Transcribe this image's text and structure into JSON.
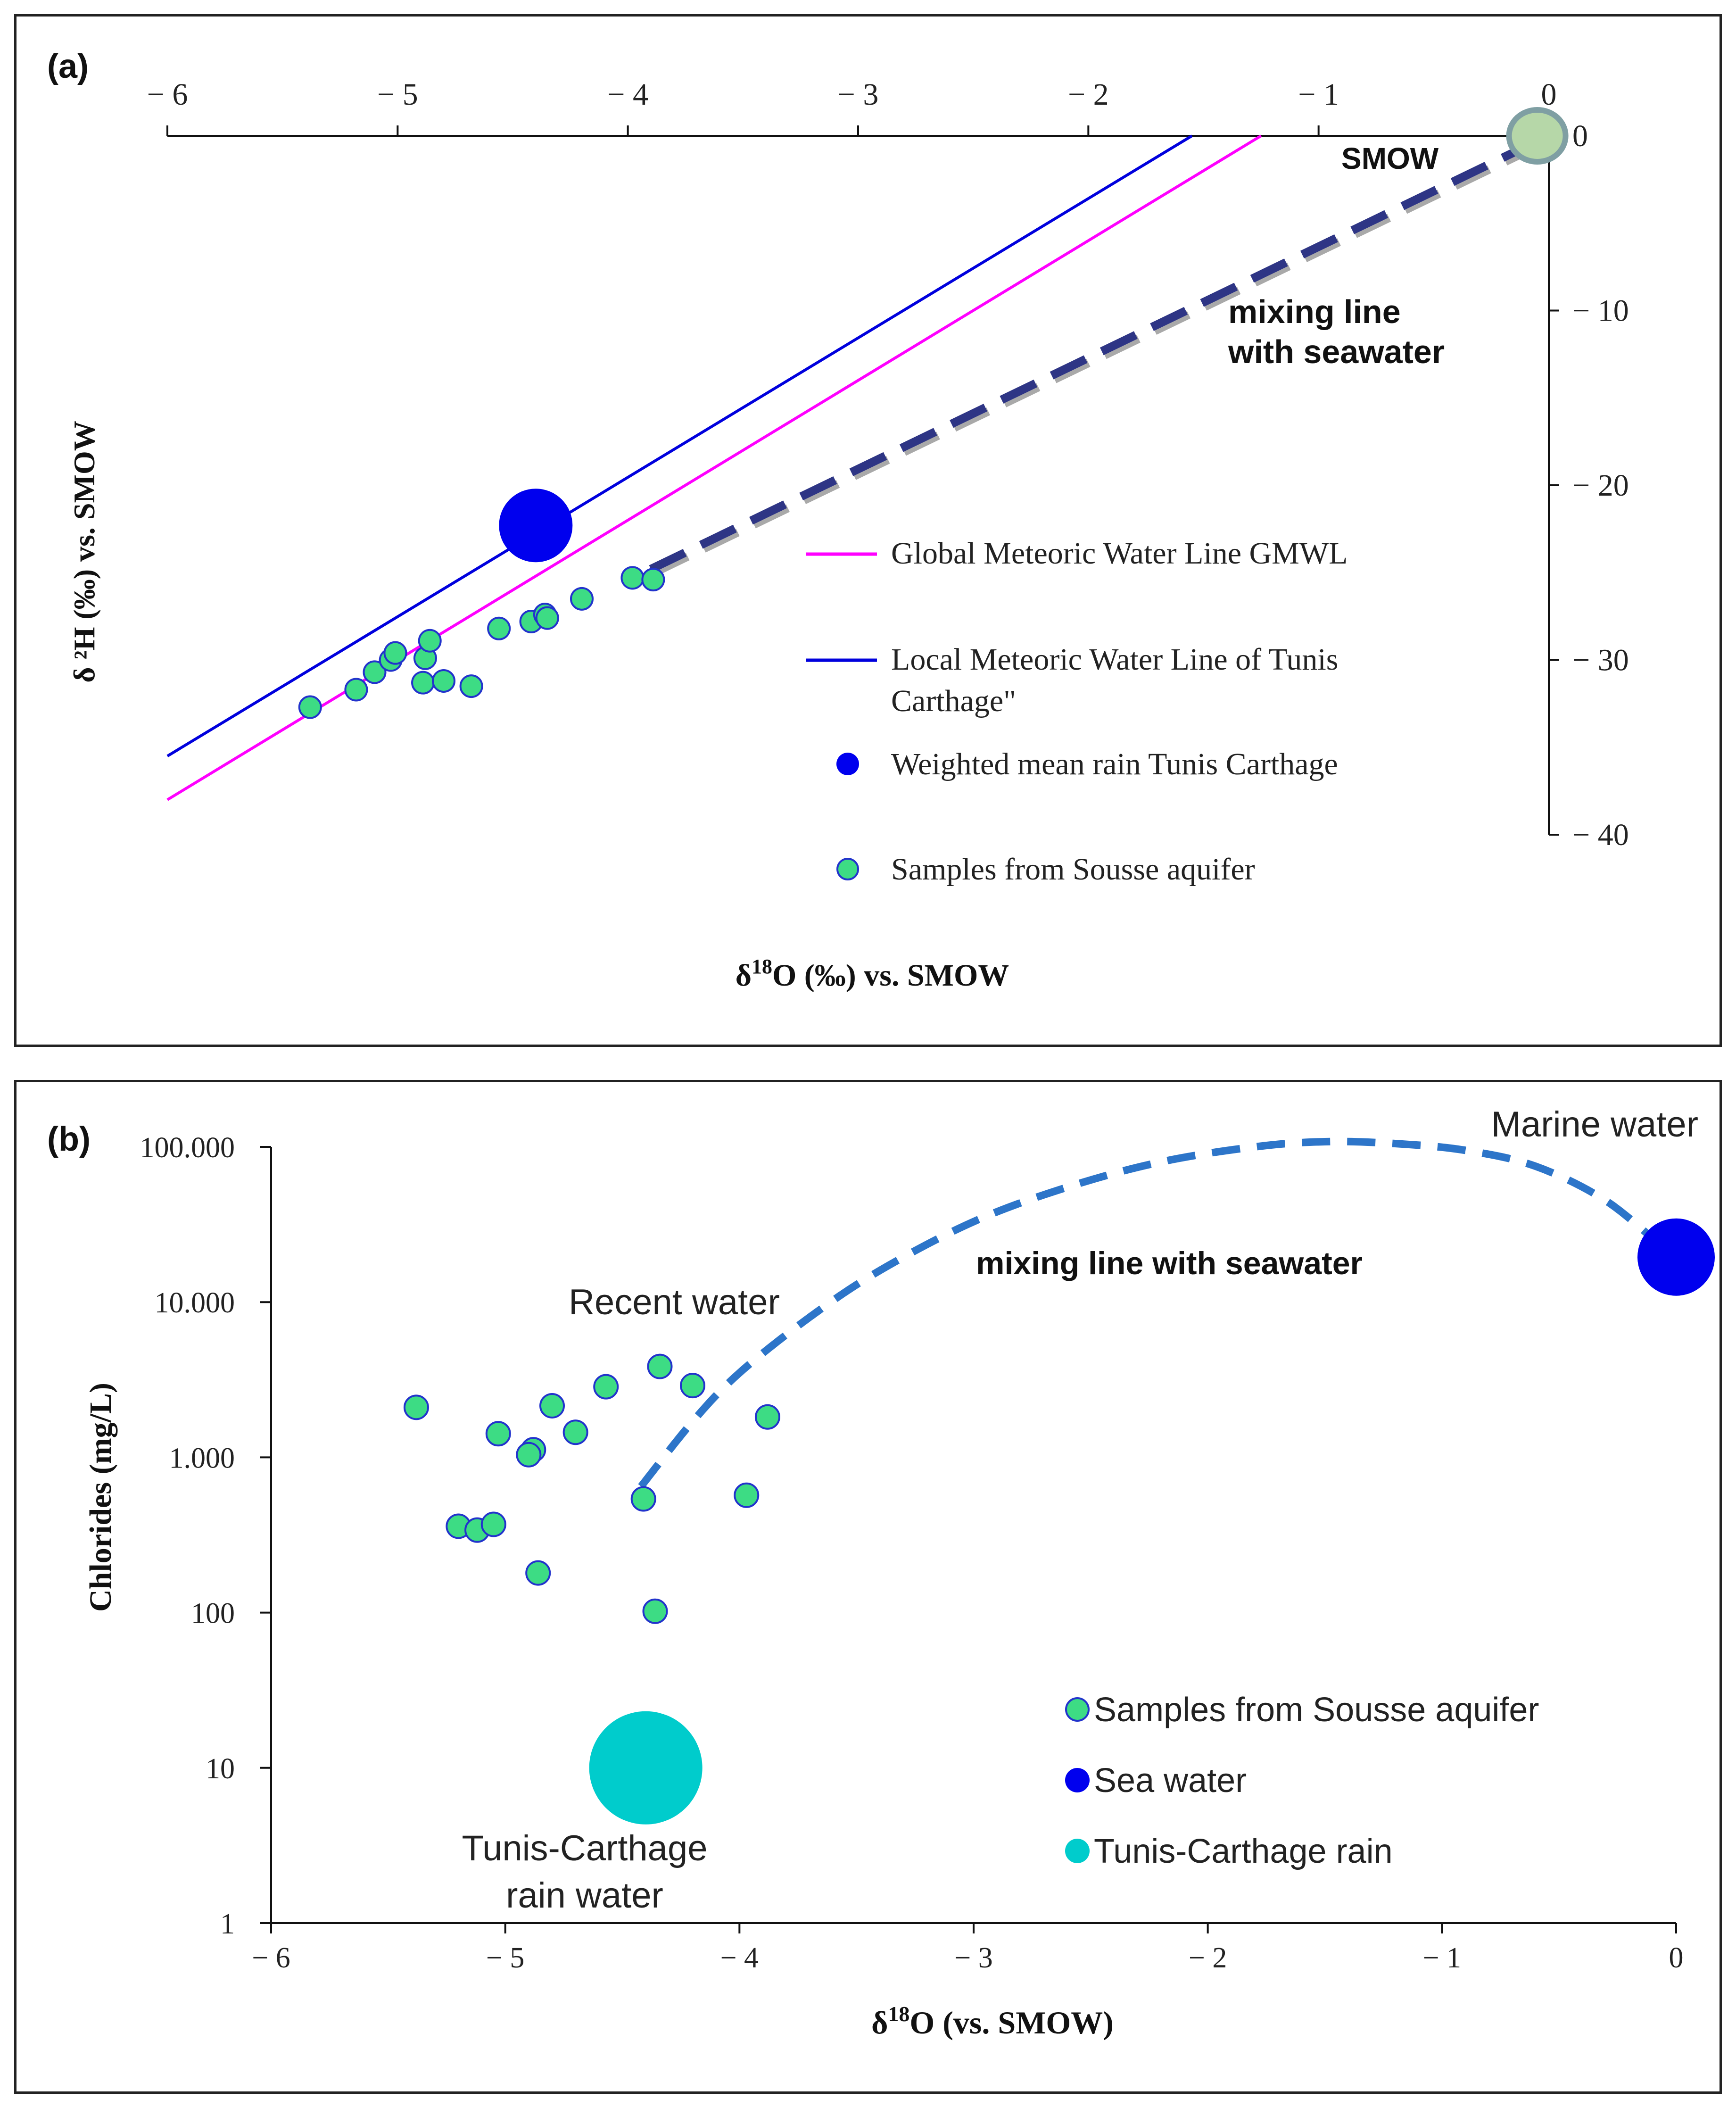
{
  "chart_data": [
    {
      "panel": "(a)",
      "type": "scatter",
      "xlabel_prefix": "δ",
      "xlabel_sup": "18",
      "xlabel_rest": "O (‰)  vs. SMOW",
      "ylabel": "δ ²H (‰)  vs. SMOW",
      "xlim": [
        -6,
        0
      ],
      "ylim": [
        -40,
        0
      ],
      "x_ticks": [
        -6,
        -5,
        -4,
        -3,
        -2,
        -1,
        0
      ],
      "x_tick_labels": [
        "− 6",
        "− 5",
        "− 4",
        "− 3",
        "− 2",
        "− 1",
        "0"
      ],
      "y_ticks": [
        0,
        -10,
        -20,
        -30,
        -40
      ],
      "y_tick_labels": [
        "0",
        "− 10",
        "− 20",
        "− 30",
        "− 40"
      ],
      "lines": [
        {
          "name": "Global Meteoric Water Line GMWL",
          "color": "#ff00ff",
          "x": [
            -6,
            -1.25
          ],
          "y": [
            -38,
            0
          ]
        },
        {
          "name": "Local Meteoric Water Line of Tunis Carthage\"",
          "color": "#0000dd",
          "x": [
            -6,
            -1.55
          ],
          "y": [
            -35.5,
            0
          ]
        },
        {
          "name": "mixing line with seawater",
          "color": "#2e3585",
          "dashed": true,
          "x": [
            -3.9,
            -0.05
          ],
          "y": [
            -24.8,
            -0.3
          ]
        }
      ],
      "weighted_mean_rain": {
        "name": "Weighted mean rain Tunis Carthage",
        "color": "#0000ee",
        "x": -4.4,
        "y": -22.3
      },
      "smow_point": {
        "label": "SMOW",
        "x": -0.05,
        "y": 0,
        "color": "#b6d7a8",
        "edge": "#7f9fa3"
      },
      "samples": {
        "name": "Samples from Sousse aquifer",
        "color": "#3ddc84",
        "edge": "#2233cc",
        "points": [
          {
            "x": -5.38,
            "y": -32.7
          },
          {
            "x": -5.18,
            "y": -31.7
          },
          {
            "x": -5.1,
            "y": -30.7
          },
          {
            "x": -5.03,
            "y": -30.0
          },
          {
            "x": -5.01,
            "y": -29.6
          },
          {
            "x": -4.89,
            "y": -31.3
          },
          {
            "x": -4.88,
            "y": -29.9
          },
          {
            "x": -4.86,
            "y": -28.9
          },
          {
            "x": -4.8,
            "y": -31.2
          },
          {
            "x": -4.68,
            "y": -31.5
          },
          {
            "x": -4.56,
            "y": -28.2
          },
          {
            "x": -4.42,
            "y": -27.8
          },
          {
            "x": -4.36,
            "y": -27.4
          },
          {
            "x": -4.35,
            "y": -27.6
          },
          {
            "x": -4.2,
            "y": -26.5
          },
          {
            "x": -3.98,
            "y": -25.3
          },
          {
            "x": -3.89,
            "y": -25.4
          }
        ]
      },
      "annotations": {
        "smow": "SMOW",
        "mixing_line_1": "mixing line",
        "mixing_line_2": "with seawater"
      },
      "legend": {
        "gmwl": "Global Meteoric Water Line GMWL",
        "lmwl_1": "Local Meteoric Water Line of Tunis",
        "lmwl_2": "Carthage\"",
        "rain": "Weighted mean rain Tunis Carthage",
        "samples": "Samples from Sousse aquifer"
      }
    },
    {
      "panel": "(b)",
      "type": "scatter",
      "yscale": "log",
      "xlabel_prefix": "δ",
      "xlabel_sup": "18",
      "xlabel_rest": "O (vs. SMOW)",
      "ylabel": "Chlorides  (mg/L)",
      "xlim": [
        -6,
        0
      ],
      "ylim": [
        1,
        100000
      ],
      "x_ticks": [
        -6,
        -5,
        -4,
        -3,
        -2,
        -1,
        0
      ],
      "x_tick_labels": [
        "− 6",
        "− 5",
        "− 4",
        "− 3",
        "− 2",
        "− 1",
        "0"
      ],
      "y_ticks": [
        1,
        10,
        100,
        1000,
        10000,
        100000
      ],
      "y_tick_labels": [
        "1",
        "10",
        "100",
        "1.000",
        "10.000",
        "100.000"
      ],
      "samples": {
        "name": "Samples from Sousse aquifer",
        "color": "#3ddc84",
        "edge": "#2233cc",
        "points": [
          {
            "x": -5.38,
            "y": 2100
          },
          {
            "x": -5.2,
            "y": 360
          },
          {
            "x": -5.12,
            "y": 340
          },
          {
            "x": -5.05,
            "y": 370
          },
          {
            "x": -5.03,
            "y": 1420
          },
          {
            "x": -4.88,
            "y": 1120
          },
          {
            "x": -4.9,
            "y": 1040
          },
          {
            "x": -4.86,
            "y": 180
          },
          {
            "x": -4.8,
            "y": 2150
          },
          {
            "x": -4.7,
            "y": 1450
          },
          {
            "x": -4.57,
            "y": 2850
          },
          {
            "x": -4.41,
            "y": 540
          },
          {
            "x": -4.36,
            "y": 102
          },
          {
            "x": -4.34,
            "y": 3850
          },
          {
            "x": -4.2,
            "y": 2900
          },
          {
            "x": -3.97,
            "y": 570
          },
          {
            "x": -3.88,
            "y": 1820
          }
        ]
      },
      "sea_water": {
        "name": "Sea water",
        "color": "#0000ee",
        "x": 0,
        "y": 19500
      },
      "rain": {
        "name": "Tunis-Carthage rain",
        "color": "#00cccc",
        "x": -4.4,
        "y": 10
      },
      "mixing_curve": {
        "name": "mixing line with seawater",
        "color": "#2d75c9",
        "x": [
          -4.42,
          -4.2,
          -4.0,
          -3.7,
          -3.4,
          -3.0,
          -2.6,
          -2.2,
          -1.8,
          -1.5,
          -1.2,
          -0.9,
          -0.6,
          -0.3,
          -0.05
        ],
        "y": [
          650,
          1700,
          3500,
          8000,
          16000,
          33000,
          55000,
          80000,
          100000,
          108000,
          105000,
          95000,
          75000,
          45000,
          22000
        ]
      },
      "annotations": {
        "marine": "Marine water",
        "mixing": "mixing line with seawater",
        "recent": "Recent water",
        "rain_1": "Tunis-Carthage",
        "rain_2": "rain water"
      },
      "legend": {
        "samples": "Samples from Sousse aquifer",
        "sea": "Sea water",
        "rain": "Tunis-Carthage rain"
      }
    }
  ]
}
